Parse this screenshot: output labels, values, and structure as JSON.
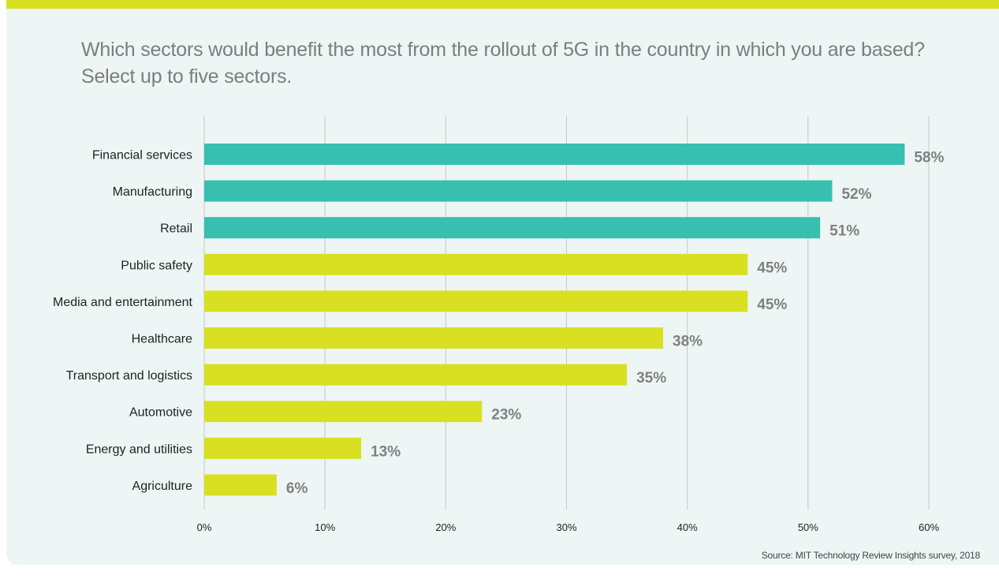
{
  "question": "Which sectors would benefit the most from the rollout of 5G in the country in which you are based? Select up to five sectors.",
  "source": "Source: MIT Technology Review Insights survey, 2018",
  "colors": {
    "accent": "#d9e021",
    "highlight": "#37bfb0",
    "background": "#edf6f4",
    "value_label": "#808080"
  },
  "chart_data": {
    "type": "bar",
    "orientation": "horizontal",
    "categories": [
      "Financial services",
      "Manufacturing",
      "Retail",
      "Public safety",
      "Media and entertainment",
      "Healthcare",
      "Transport and logistics",
      "Automotive",
      "Energy and utilities",
      "Agriculture"
    ],
    "values": [
      58,
      52,
      51,
      45,
      45,
      38,
      35,
      23,
      13,
      6
    ],
    "value_labels": [
      "58%",
      "52%",
      "51%",
      "45%",
      "45%",
      "38%",
      "35%",
      "23%",
      "13%",
      "6%"
    ],
    "highlighted": [
      true,
      true,
      true,
      false,
      false,
      false,
      false,
      false,
      false,
      false
    ],
    "xlim": [
      0,
      60
    ],
    "xticks": [
      0,
      10,
      20,
      30,
      40,
      50,
      60
    ],
    "xtick_labels": [
      "0%",
      "10%",
      "20%",
      "30%",
      "40%",
      "50%",
      "60%"
    ],
    "grid": true,
    "title": "Which sectors would benefit the most from the rollout of 5G in the country in which you are based? Select up to five sectors."
  }
}
